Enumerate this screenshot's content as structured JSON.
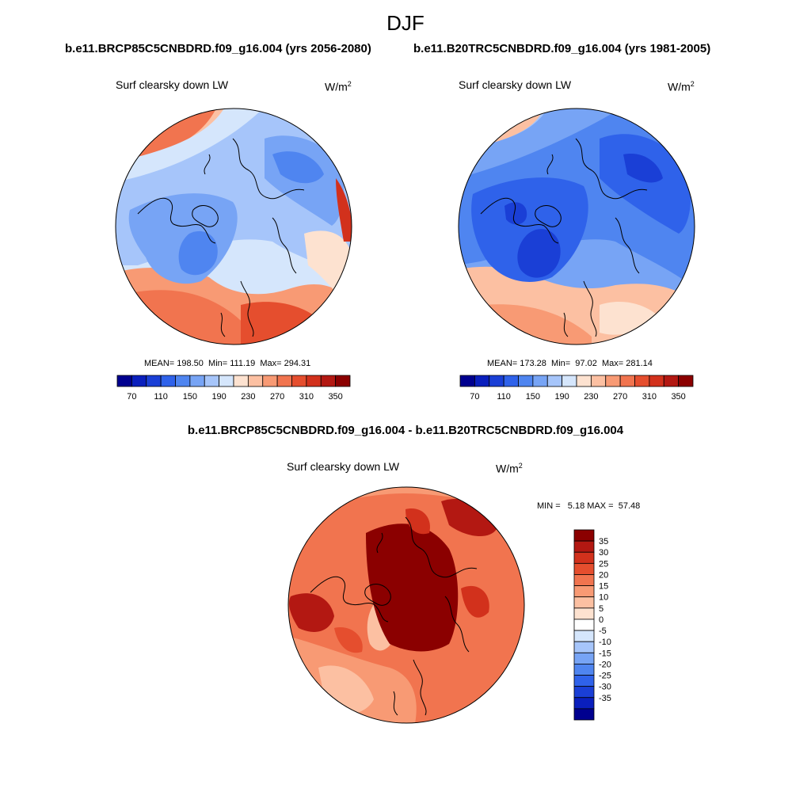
{
  "season": "DJF",
  "case1_title": "b.e11.BRCP85C5CNBDRD.f09_g16.004 (yrs 2056-2080)",
  "case2_title": "b.e11.B20TRC5CNBDRD.f09_g16.004 (yrs 1981-2005)",
  "diff_title": "b.e11.BRCP85C5CNBDRD.f09_g16.004 - b.e11.B20TRC5CNBDRD.f09_g16.004",
  "variable": "Surf clearsky down LW",
  "units_base": "W/m",
  "units_exp": "2",
  "panel1": {
    "mean": "MEAN= 198.50",
    "min": "Min= 111.19",
    "max": "Max= 294.31"
  },
  "panel2": {
    "mean": "MEAN= 173.28",
    "min": "Min=  97.02",
    "max": "Max= 281.14"
  },
  "panel3": {
    "minmax": "MIN =   5.18 MAX =  57.48"
  },
  "colorbar_main": {
    "colors": [
      "#00008f",
      "#0a1fbd",
      "#1a3fd6",
      "#2f62ea",
      "#4f85f0",
      "#77a4f5",
      "#a6c5fa",
      "#d5e6fc",
      "#fde2d0",
      "#fcc0a2",
      "#f89a74",
      "#f1744f",
      "#e54e2e",
      "#d2311c",
      "#b31812",
      "#8b0000"
    ],
    "tick_labels": [
      "70",
      "110",
      "150",
      "190",
      "230",
      "270",
      "310",
      "350"
    ]
  },
  "colorbar_diff": {
    "colors": [
      "#8b0000",
      "#b31812",
      "#d2311c",
      "#e54e2e",
      "#f1744f",
      "#f89a74",
      "#fcc0a2",
      "#fde2d0",
      "#ffffff",
      "#d5e6fc",
      "#a6c5fa",
      "#77a4f5",
      "#4f85f0",
      "#2f62ea",
      "#1a3fd6",
      "#0a1fbd",
      "#00008f"
    ],
    "tick_labels": [
      "35",
      "30",
      "25",
      "20",
      "15",
      "10",
      "5",
      "0",
      "-5",
      "-10",
      "-15",
      "-20",
      "-25",
      "-30",
      "-35"
    ]
  }
}
